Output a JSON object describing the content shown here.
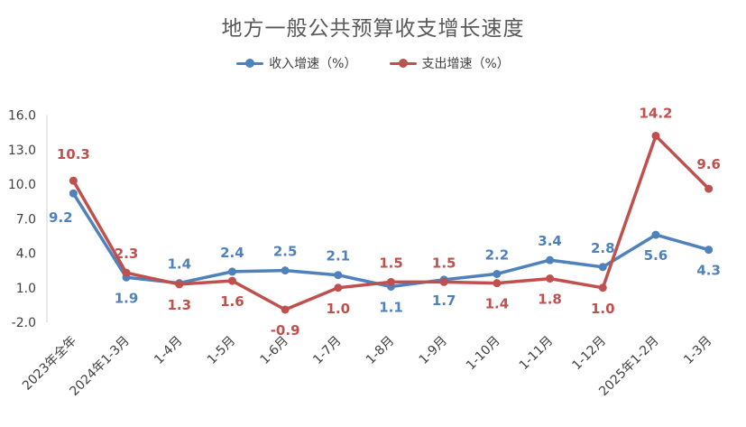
{
  "chart_data": {
    "type": "line",
    "title": "地方一般公共预算收支增长速度",
    "categories": [
      "2023年全年",
      "2024年1-3月",
      "1-4月",
      "1-5月",
      "1-6月",
      "1-7月",
      "1-8月",
      "1-9月",
      "1-10月",
      "1-11月",
      "1-12月",
      "2025年1-2月",
      "1-3月"
    ],
    "series": [
      {
        "name": "收入增速（%）",
        "color": "#4f81bd",
        "values": [
          9.2,
          1.9,
          1.4,
          2.4,
          2.5,
          2.1,
          1.1,
          1.7,
          2.2,
          3.4,
          2.8,
          5.6,
          4.3
        ],
        "labels": [
          "9.2",
          "1.9",
          "1.4",
          "2.4",
          "2.5",
          "2.1",
          "1.1",
          "1.7",
          "2.2",
          "3.4",
          "2.8",
          "5.6",
          "4.3"
        ]
      },
      {
        "name": "支出增速（%）",
        "color": "#c0504d",
        "values": [
          10.3,
          2.3,
          1.3,
          1.6,
          -0.9,
          1.0,
          1.5,
          1.5,
          1.4,
          1.8,
          1.0,
          14.2,
          9.6
        ],
        "labels": [
          "10.3",
          "2.3",
          "1.3",
          "1.6",
          "-0.9",
          "1.0",
          "1.5",
          "1.5",
          "1.4",
          "1.8",
          "1.0",
          "14.2",
          "9.6"
        ]
      }
    ],
    "yticks": [
      "16.0",
      "13.0",
      "10.0",
      "7.0",
      "4.0",
      "1.0",
      "-2.0"
    ],
    "ylim": [
      -2.0,
      16.0
    ],
    "grid": false,
    "legend": "top"
  }
}
